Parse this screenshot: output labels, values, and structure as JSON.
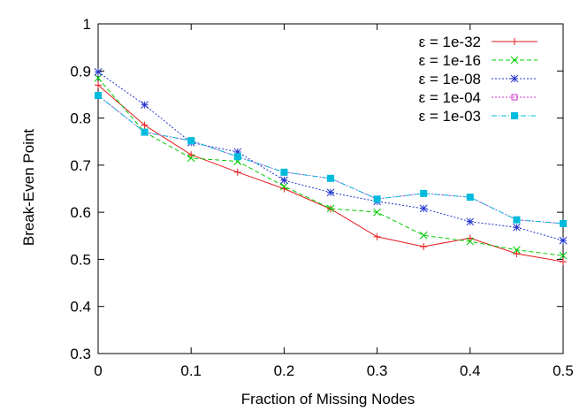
{
  "chart_data": {
    "type": "line",
    "xlabel": "Fraction of Missing Nodes",
    "ylabel": "Break-Even Point",
    "xlim": [
      0,
      0.5
    ],
    "ylim": [
      0.3,
      1.0
    ],
    "x": [
      0,
      0.05,
      0.1,
      0.15,
      0.2,
      0.25,
      0.3,
      0.35,
      0.4,
      0.45,
      0.5
    ],
    "xticks": [
      "0",
      "0.1",
      "0.2",
      "0.3",
      "0.4",
      "0.5"
    ],
    "yticks": [
      "0.3",
      "0.4",
      "0.5",
      "0.6",
      "0.7",
      "0.8",
      "0.9",
      "1"
    ],
    "grid": false,
    "legend_position": "top-right",
    "series": [
      {
        "name": "ε = 1e-32",
        "color": "#e41a1c",
        "marker": "plus",
        "dash": "solid",
        "values": [
          0.87,
          0.785,
          0.722,
          0.685,
          0.65,
          0.607,
          0.548,
          0.527,
          0.545,
          0.512,
          0.495
        ]
      },
      {
        "name": "ε = 1e-16",
        "color": "#00cc00",
        "marker": "cross",
        "dash": "dashed",
        "values": [
          0.885,
          0.77,
          0.715,
          0.708,
          0.655,
          0.608,
          0.6,
          0.551,
          0.538,
          0.52,
          0.508
        ]
      },
      {
        "name": "ε = 1e-08",
        "color": "#2233cc",
        "marker": "star",
        "dash": "dotted",
        "values": [
          0.898,
          0.828,
          0.748,
          0.728,
          0.668,
          0.642,
          0.623,
          0.608,
          0.58,
          0.568,
          0.54
        ]
      },
      {
        "name": "ε = 1e-04",
        "color": "#cc33cc",
        "marker": "square-open",
        "dash": "dotted",
        "values": [
          0.848,
          0.77,
          0.752,
          0.718,
          0.685,
          0.672,
          0.628,
          0.64,
          0.632,
          0.584,
          0.576
        ]
      },
      {
        "name": "ε = 1e-03",
        "color": "#00bbdd",
        "marker": "square-filled",
        "dash": "dashdot",
        "values": [
          0.848,
          0.77,
          0.752,
          0.718,
          0.685,
          0.672,
          0.628,
          0.64,
          0.632,
          0.584,
          0.576
        ]
      }
    ]
  }
}
